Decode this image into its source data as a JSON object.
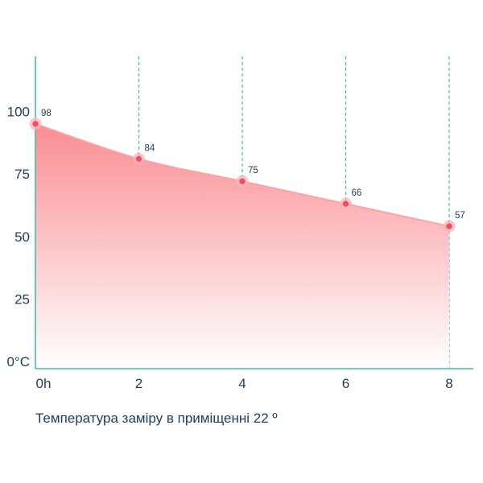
{
  "chart_data": {
    "type": "area",
    "x": [
      0,
      2,
      4,
      6,
      8
    ],
    "x_tick_labels": [
      "0h",
      "2",
      "4",
      "6",
      "8"
    ],
    "values": [
      98,
      84,
      75,
      66,
      57
    ],
    "data_labels": [
      "98",
      "84",
      "75",
      "66",
      "57"
    ],
    "y_ticks": [
      0,
      25,
      50,
      75,
      100
    ],
    "y_tick_labels": [
      "0°C",
      "25",
      "50",
      "75",
      "100"
    ],
    "xlim": [
      0,
      8
    ],
    "ylim": [
      0,
      125
    ],
    "grid": "vertical dashed",
    "caption": "Температура заміру в приміщенні 22 º"
  },
  "colors": {
    "axis": "#3fbfb0",
    "grid": "#3fbfb0",
    "line": "#f7a5a8",
    "fill_top": "#fa8d93",
    "fill_bottom": "#ffffff",
    "marker": "#f24d5b",
    "marker_halo": "#fbb3b8",
    "text": "#1f3c5a"
  }
}
